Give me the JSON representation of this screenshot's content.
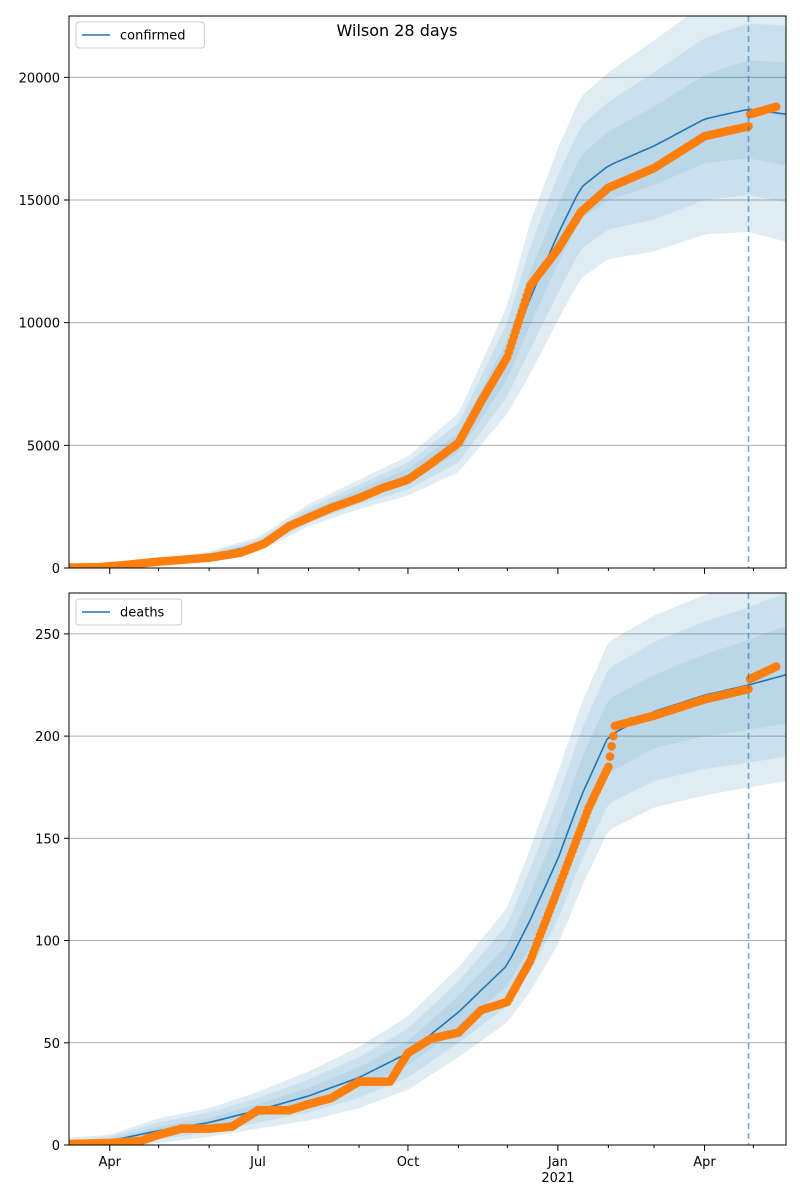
{
  "title": "Wilson 28 days",
  "colors": {
    "model": "#1f77b4",
    "observed": "#ff7f0e",
    "band": "#1f77b4",
    "grid": "#b0b0b0",
    "forecast_line": "#1f77b4"
  },
  "x_axis": {
    "start": "2020-03-07",
    "end": "2021-05-21",
    "forecast_start": "2021-04-28",
    "major_ticks": [
      {
        "date": "2020-04-01",
        "label": "Apr",
        "sublabel": ""
      },
      {
        "date": "2020-07-01",
        "label": "Jul",
        "sublabel": ""
      },
      {
        "date": "2020-10-01",
        "label": "Oct",
        "sublabel": ""
      },
      {
        "date": "2021-01-01",
        "label": "Jan",
        "sublabel": "2021"
      },
      {
        "date": "2021-04-01",
        "label": "Apr",
        "sublabel": ""
      }
    ],
    "minor_ticks": [
      "2020-05-01",
      "2020-06-01",
      "2020-08-01",
      "2020-09-01",
      "2020-11-01",
      "2020-12-01",
      "2021-02-01",
      "2021-03-01",
      "2021-05-01"
    ]
  },
  "chart_data": [
    {
      "type": "line",
      "legend": "confirmed",
      "legend_position": "top-left",
      "grid": "y",
      "ylim": [
        0,
        22500
      ],
      "yticks": [
        0,
        5000,
        10000,
        15000,
        20000
      ],
      "model": {
        "x": [
          "2020-03-07",
          "2020-04-01",
          "2020-05-01",
          "2020-06-01",
          "2020-07-01",
          "2020-08-01",
          "2020-09-01",
          "2020-10-01",
          "2020-11-01",
          "2020-12-01",
          "2020-12-15",
          "2021-01-01",
          "2021-01-15",
          "2021-02-01",
          "2021-03-01",
          "2021-04-01",
          "2021-04-28",
          "2021-05-21"
        ],
        "y": [
          20,
          60,
          250,
          500,
          950,
          2150,
          3000,
          3750,
          5100,
          8500,
          11000,
          13600,
          15500,
          16400,
          17200,
          18300,
          18700,
          18500
        ],
        "band_half_widths": [
          [
            5,
            10,
            30,
            60,
            100,
            150,
            200,
            300,
            400,
            800,
            1100,
            1200,
            1300,
            1400,
            1600,
            1800,
            2000,
            2100
          ],
          [
            10,
            25,
            60,
            110,
            200,
            300,
            400,
            550,
            800,
            1500,
            2100,
            2400,
            2500,
            2600,
            3000,
            3300,
            3500,
            3600
          ],
          [
            15,
            40,
            100,
            180,
            300,
            450,
            600,
            800,
            1200,
            2200,
            3100,
            3500,
            3700,
            3800,
            4300,
            4700,
            5000,
            5200
          ]
        ]
      },
      "observed": {
        "x": [
          "2020-03-07",
          "2020-03-25",
          "2020-04-10",
          "2020-05-01",
          "2020-06-01",
          "2020-06-20",
          "2020-07-05",
          "2020-07-20",
          "2020-08-01",
          "2020-08-15",
          "2020-09-01",
          "2020-09-15",
          "2020-10-01",
          "2020-10-15",
          "2020-11-01",
          "2020-11-15",
          "2020-12-01",
          "2020-12-15",
          "2021-01-01",
          "2021-01-15",
          "2021-02-01",
          "2021-03-01",
          "2021-04-01",
          "2021-04-28",
          "2021-04-29",
          "2021-05-15"
        ],
        "y": [
          20,
          30,
          120,
          260,
          420,
          620,
          1000,
          1700,
          2050,
          2450,
          2850,
          3250,
          3600,
          4250,
          5100,
          6800,
          8600,
          11500,
          13000,
          14500,
          15500,
          16300,
          17600,
          18000,
          18500,
          18800
        ]
      }
    },
    {
      "type": "line",
      "legend": "deaths",
      "legend_position": "top-left",
      "grid": "y",
      "ylim": [
        0,
        270
      ],
      "yticks": [
        0,
        50,
        100,
        150,
        200,
        250
      ],
      "model": {
        "x": [
          "2020-03-07",
          "2020-04-01",
          "2020-05-01",
          "2020-06-01",
          "2020-07-01",
          "2020-08-01",
          "2020-09-01",
          "2020-10-01",
          "2020-11-01",
          "2020-12-01",
          "2020-12-15",
          "2021-01-01",
          "2021-01-15",
          "2021-02-01",
          "2021-03-01",
          "2021-04-01",
          "2021-04-28",
          "2021-05-21"
        ],
        "y": [
          0.5,
          2,
          7,
          11,
          17,
          24,
          33,
          45,
          65,
          88,
          110,
          140,
          170,
          200,
          212,
          220,
          225,
          230
        ],
        "band_half_widths": [
          [
            0.5,
            1,
            2,
            2,
            3,
            4,
            5,
            6,
            8,
            10,
            13,
            16,
            18,
            18,
            18,
            20,
            22,
            24
          ],
          [
            1.5,
            2,
            4,
            5,
            6,
            8,
            10,
            12,
            15,
            20,
            25,
            30,
            32,
            33,
            34,
            36,
            38,
            40
          ],
          [
            3,
            3,
            6,
            7,
            9,
            12,
            15,
            18,
            22,
            28,
            35,
            42,
            45,
            46,
            47,
            49,
            50,
            52
          ]
        ]
      },
      "observed": {
        "x": [
          "2020-03-07",
          "2020-04-01",
          "2020-04-20",
          "2020-05-01",
          "2020-05-15",
          "2020-06-01",
          "2020-06-15",
          "2020-07-01",
          "2020-07-20",
          "2020-08-01",
          "2020-08-15",
          "2020-09-01",
          "2020-09-05",
          "2020-09-20",
          "2020-10-01",
          "2020-10-15",
          "2020-11-01",
          "2020-11-15",
          "2020-12-01",
          "2020-12-15",
          "2021-01-01",
          "2021-01-20",
          "2021-02-01",
          "2021-02-05",
          "2021-03-01",
          "2021-04-01",
          "2021-04-28",
          "2021-04-29",
          "2021-05-15"
        ],
        "y": [
          0.5,
          1,
          2,
          5,
          8,
          8,
          9,
          17,
          17,
          20,
          23,
          31,
          31,
          31,
          45,
          52,
          55,
          66,
          70,
          90,
          125,
          165,
          185,
          205,
          210,
          218,
          223,
          228,
          234
        ]
      }
    }
  ]
}
